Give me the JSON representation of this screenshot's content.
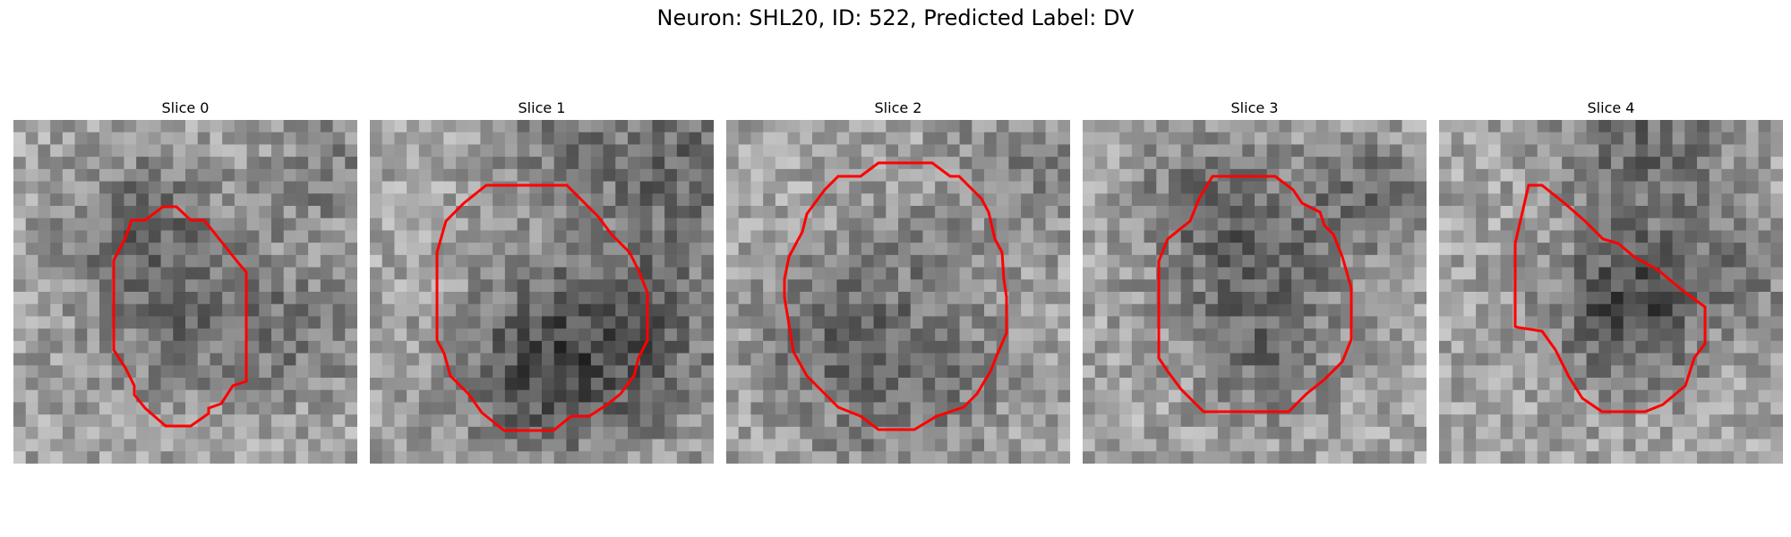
{
  "figure": {
    "title": "Neuron: SHL20, ID: 522, Predicted Label: DV"
  },
  "panels": [
    {
      "title": "Slice 0"
    },
    {
      "title": "Slice 1"
    },
    {
      "title": "Slice 2"
    },
    {
      "title": "Slice 3"
    },
    {
      "title": "Slice 4"
    }
  ],
  "colors": {
    "contour": "#ff0000"
  }
}
